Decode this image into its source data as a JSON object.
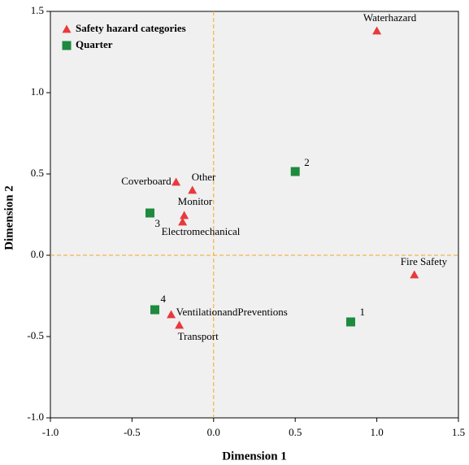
{
  "chart_data": {
    "type": "scatter",
    "x_label": "Dimension 1",
    "y_label": "Dimension 2",
    "xlim": [
      -1,
      1.5
    ],
    "ylim": [
      -1,
      1.5
    ],
    "xticks": [
      {
        "value": -1,
        "label": "-1.0"
      },
      {
        "value": -0.5,
        "label": "-0.5"
      },
      {
        "value": 0,
        "label": "0.0"
      },
      {
        "value": 0.5,
        "label": "0.5"
      },
      {
        "value": 1,
        "label": "1.0"
      },
      {
        "value": 1.5,
        "label": "1.5"
      }
    ],
    "yticks": [
      {
        "value": -1,
        "label": "-1.0"
      },
      {
        "value": -0.5,
        "label": "-0.5"
      },
      {
        "value": 0,
        "label": "0.0"
      },
      {
        "value": 0.5,
        "label": "0.5"
      },
      {
        "value": 1,
        "label": "1.0"
      },
      {
        "value": 1.5,
        "label": "1.5"
      }
    ],
    "reference_lines": {
      "x": 0,
      "y": 0,
      "color": "#f5a623"
    },
    "legend": "top-left",
    "series": [
      {
        "name": "Safety hazard categories",
        "color": "#e8393c",
        "marker": "triangle",
        "labels": [
          "Waterhazard",
          "Coverboard",
          "Other",
          "Monitor",
          "Electromechanical",
          "Fire Safety",
          "VentilationandPreventions",
          "Transport"
        ],
        "x": [
          1.0,
          -0.23,
          -0.13,
          -0.18,
          -0.19,
          1.23,
          -0.26,
          -0.21
        ],
        "values": [
          1.38,
          0.45,
          0.4,
          0.245,
          0.205,
          -0.12,
          -0.365,
          -0.43
        ]
      },
      {
        "name": "Quarter",
        "color": "#1e8a3e",
        "marker": "square",
        "labels": [
          "1",
          "2",
          "3",
          "4"
        ],
        "x": [
          0.84,
          0.5,
          -0.39,
          -0.36
        ],
        "values": [
          -0.41,
          0.515,
          0.26,
          -0.335
        ]
      }
    ]
  }
}
